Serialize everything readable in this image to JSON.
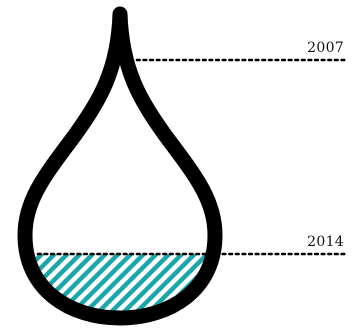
{
  "markers": {
    "top": {
      "label": "2007"
    },
    "bottom": {
      "label": "2014"
    }
  },
  "fill_level": 0.22,
  "colors": {
    "outline": "#000000",
    "hatch": "#1aa7a9",
    "leader": "#000000",
    "text": "#111111"
  }
}
